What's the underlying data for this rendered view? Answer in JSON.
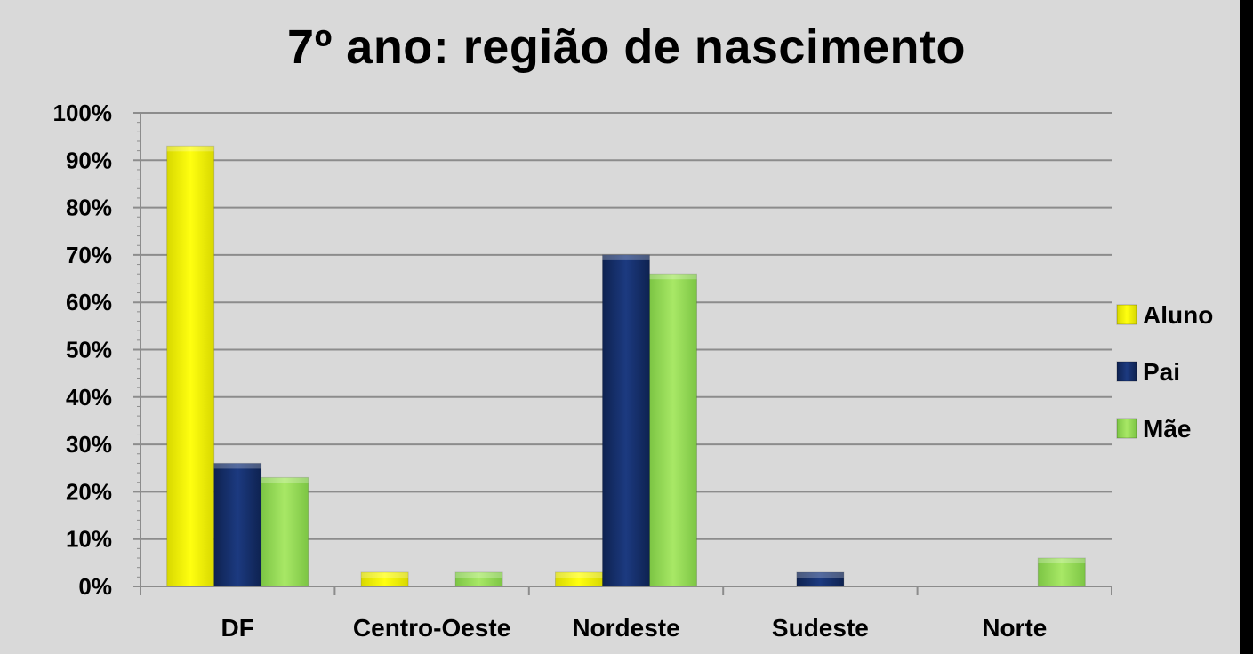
{
  "chart_data": {
    "type": "bar",
    "title": "7º ano: região de nascimento",
    "categories": [
      "DF",
      "Centro-Oeste",
      "Nordeste",
      "Sudeste",
      "Norte"
    ],
    "series": [
      {
        "name": "Aluno",
        "color": "#ffff00",
        "values": [
          93,
          3,
          3,
          0,
          0
        ]
      },
      {
        "name": "Pai",
        "color": "#17306b",
        "values": [
          26,
          0,
          70,
          3,
          0
        ]
      },
      {
        "name": "Mãe",
        "color": "#99e05a",
        "values": [
          23,
          3,
          66,
          0,
          6
        ]
      }
    ],
    "ylim": [
      0,
      100
    ],
    "yticks": [
      "0%",
      "10%",
      "20%",
      "30%",
      "40%",
      "50%",
      "60%",
      "70%",
      "80%",
      "90%",
      "100%"
    ],
    "grid": true,
    "legend": "right"
  }
}
